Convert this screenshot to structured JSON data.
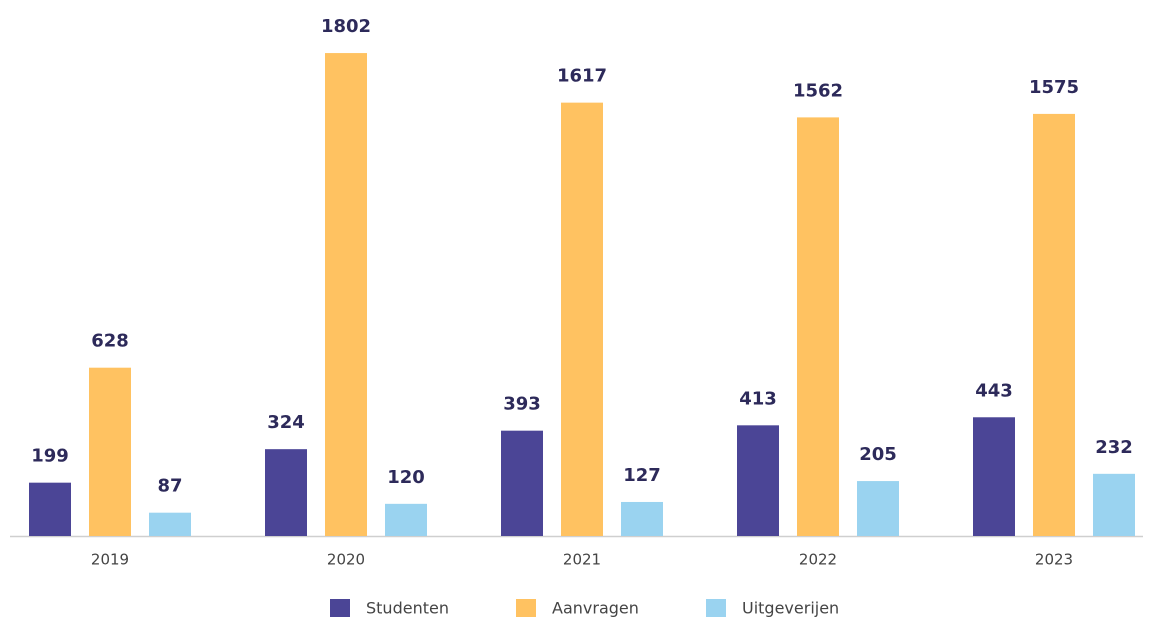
{
  "chart_data": {
    "type": "bar",
    "categories": [
      "2019",
      "2020",
      "2021",
      "2022",
      "2023"
    ],
    "series": [
      {
        "name": "Studenten",
        "color": "#4b4596",
        "values": [
          199,
          324,
          393,
          413,
          443
        ]
      },
      {
        "name": "Aanvragen",
        "color": "#ffc261",
        "values": [
          628,
          1802,
          1617,
          1562,
          1575
        ]
      },
      {
        "name": "Uitgeverijen",
        "color": "#9ad3f0",
        "values": [
          87,
          120,
          127,
          205,
          232
        ]
      }
    ],
    "ylim": [
      0,
      2000
    ],
    "grid": false,
    "legend": "bottom"
  }
}
